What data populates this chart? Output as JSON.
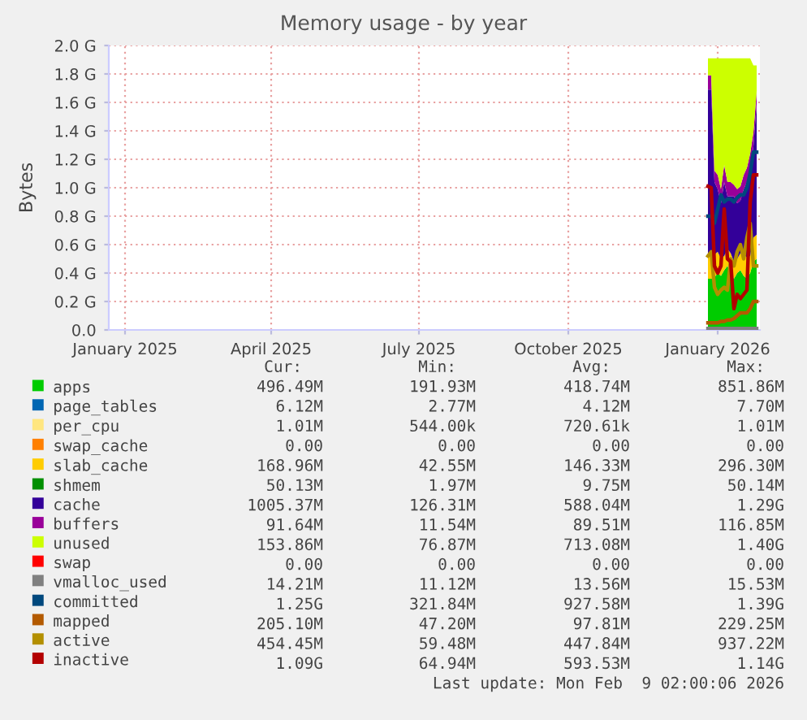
{
  "chart_data": {
    "type": "area",
    "stacked": true,
    "title": "Memory usage - by year",
    "ylabel": "Bytes",
    "x": [
      "2025-12-26",
      "2025-12-28",
      "2025-12-30",
      "2026-01-01",
      "2026-01-03",
      "2026-01-05",
      "2026-01-07",
      "2026-01-09",
      "2026-01-11",
      "2026-01-13",
      "2026-01-15",
      "2026-01-17",
      "2026-01-19",
      "2026-01-21",
      "2026-01-23",
      "2026-01-25"
    ],
    "series": [
      {
        "name": "apps",
        "color": "#00cc00",
        "values": [
          0.36,
          0.36,
          0.37,
          0.4,
          0.38,
          0.42,
          0.45,
          0.4,
          0.36,
          0.4,
          0.42,
          0.38,
          0.36,
          0.4,
          0.48,
          0.5
        ]
      },
      {
        "name": "page_tables",
        "color": "#0066b3",
        "values": [
          null,
          null,
          null,
          null,
          null,
          null,
          null,
          null,
          null,
          null,
          null,
          null,
          null,
          null,
          null,
          null
        ]
      },
      {
        "name": "per_cpu",
        "color": "#ffe680",
        "values": [
          null,
          null,
          null,
          null,
          null,
          null,
          null,
          null,
          null,
          null,
          null,
          null,
          null,
          null,
          null,
          null
        ]
      },
      {
        "name": "swap_cache",
        "color": "#ff8000",
        "values": [
          null,
          null,
          null,
          null,
          null,
          null,
          null,
          null,
          null,
          null,
          null,
          null,
          null,
          null,
          null,
          null
        ]
      },
      {
        "name": "slab_cache",
        "color": "#ffcc00",
        "values": [
          0.17,
          0.17,
          0.16,
          0.15,
          0.12,
          0.1,
          0.12,
          0.14,
          0.12,
          0.1,
          0.12,
          0.15,
          0.15,
          0.12,
          0.17,
          0.17
        ]
      },
      {
        "name": "shmem",
        "color": "#008f00",
        "values": [
          null,
          null,
          null,
          null,
          null,
          null,
          null,
          null,
          null,
          null,
          null,
          null,
          null,
          null,
          null,
          null
        ]
      },
      {
        "name": "cache",
        "color": "#330099",
        "values": [
          1.16,
          1.16,
          0.51,
          0.44,
          0.39,
          0.52,
          0.37,
          0.4,
          0.46,
          0.39,
          0.37,
          0.46,
          0.53,
          0.62,
          0.64,
          0.92
        ]
      },
      {
        "name": "buffers",
        "color": "#990099",
        "values": [
          0.1,
          0.1,
          0.08,
          0.1,
          0.1,
          0.12,
          0.1,
          0.1,
          0.08,
          0.1,
          0.1,
          0.1,
          0.1,
          0.1,
          0.1,
          0.09
        ]
      },
      {
        "name": "unused",
        "color": "#ccff00",
        "values": [
          0.12,
          0.12,
          0.79,
          0.82,
          0.92,
          0.75,
          0.87,
          0.87,
          0.89,
          0.92,
          0.9,
          0.82,
          0.77,
          0.67,
          0.47,
          0.18
        ]
      },
      {
        "name": "swap",
        "color": "#ff0000",
        "values": [
          null,
          null,
          null,
          null,
          null,
          null,
          null,
          null,
          null,
          null,
          null,
          null,
          null,
          null,
          null,
          null
        ]
      },
      {
        "name": "vmalloc_used",
        "color": "#808080",
        "type": "line",
        "values": [
          0.01,
          0.01,
          0.01,
          0.01,
          0.01,
          0.01,
          0.01,
          0.01,
          0.01,
          0.01,
          0.01,
          0.01,
          0.01,
          0.01,
          0.01,
          0.01
        ]
      },
      {
        "name": "committed",
        "color": "#00487d",
        "type": "line",
        "values": [
          0.8,
          0.8,
          0.75,
          0.85,
          0.95,
          0.9,
          0.92,
          0.92,
          0.9,
          0.93,
          0.95,
          0.95,
          1.0,
          1.1,
          1.25,
          1.25
        ]
      },
      {
        "name": "mapped",
        "color": "#b35a00",
        "type": "line",
        "values": [
          0.05,
          0.05,
          0.05,
          0.05,
          0.06,
          0.06,
          0.07,
          0.07,
          0.08,
          0.1,
          0.12,
          0.12,
          0.12,
          0.15,
          0.2,
          0.2
        ]
      },
      {
        "name": "active",
        "color": "#b38f00",
        "type": "line",
        "values": [
          0.52,
          0.55,
          0.3,
          0.25,
          0.28,
          0.3,
          0.28,
          0.5,
          0.45,
          0.55,
          0.6,
          0.5,
          0.65,
          0.75,
          0.45,
          0.45
        ]
      },
      {
        "name": "inactive",
        "color": "#b30000",
        "type": "line",
        "values": [
          1.01,
          1.0,
          0.45,
          0.4,
          0.45,
          0.85,
          0.5,
          0.48,
          0.15,
          0.25,
          0.22,
          0.25,
          0.28,
          0.9,
          1.09,
          1.09
        ]
      }
    ],
    "xlim": [
      "2024-12-22",
      "2026-01-27"
    ],
    "xticks": [
      {
        "value": "2025-01-01",
        "label": "January 2025"
      },
      {
        "value": "2025-04-01",
        "label": "April 2025"
      },
      {
        "value": "2025-07-01",
        "label": "July 2025"
      },
      {
        "value": "2025-10-01",
        "label": "October 2025"
      },
      {
        "value": "2026-01-01",
        "label": "January 2026"
      }
    ],
    "ylim": [
      0,
      2.0
    ],
    "yticks": [
      {
        "value": 0,
        "label": "0.0"
      },
      {
        "value": 0.2,
        "label": "0.2 G"
      },
      {
        "value": 0.4,
        "label": "0.4 G"
      },
      {
        "value": 0.6,
        "label": "0.6 G"
      },
      {
        "value": 0.8,
        "label": "0.8 G"
      },
      {
        "value": 1.0,
        "label": "1.0 G"
      },
      {
        "value": 1.2,
        "label": "1.2 G"
      },
      {
        "value": 1.4,
        "label": "1.4 G"
      },
      {
        "value": 1.6,
        "label": "1.6 G"
      },
      {
        "value": 1.8,
        "label": "1.8 G"
      },
      {
        "value": 2.0,
        "label": "2.0 G"
      }
    ],
    "grid": true,
    "legend": "bottom",
    "annotations": [
      "Cur:",
      "Min:",
      "Avg:",
      "Max:",
      "496.49M",
      "191.93M",
      "418.74M",
      "851.86M",
      "6.12M",
      "2.77M",
      "4.12M",
      "7.70M",
      "1.01M",
      "544.00k",
      "720.61k",
      "1.01M",
      "0.00",
      "0.00",
      "0.00",
      "0.00",
      "168.96M",
      "42.55M",
      "146.33M",
      "296.30M",
      "50.13M",
      "1.97M",
      "9.75M",
      "50.14M",
      "1005.37M",
      "126.31M",
      "588.04M",
      "1.29G",
      "91.64M",
      "11.54M",
      "89.51M",
      "116.85M",
      "153.86M",
      "76.87M",
      "713.08M",
      "1.40G",
      "0.00",
      "0.00",
      "0.00",
      "0.00",
      "14.21M",
      "11.12M",
      "13.56M",
      "15.53M",
      "1.25G",
      "321.84M",
      "927.58M",
      "1.39G",
      "205.10M",
      "47.20M",
      "97.81M",
      "229.25M",
      "454.45M",
      "59.48M",
      "447.84M",
      "937.22M",
      "1.09G",
      "64.94M",
      "593.53M",
      "1.14G",
      "Last update: Mon Feb  9 02:00:06 2026"
    ]
  }
}
